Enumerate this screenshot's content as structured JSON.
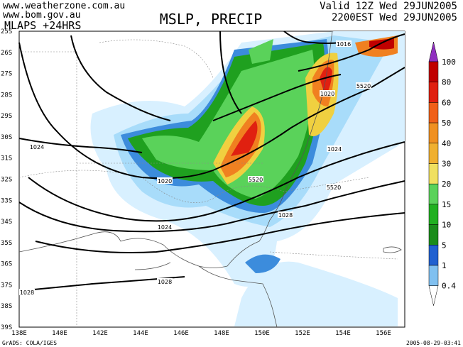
{
  "header": {
    "site_lines": [
      "www.weatherzone.com.au",
      "www.bom.gov.au"
    ],
    "model": "MLAPS +24HRS",
    "title": "MSLP, PRECIP",
    "valid": [
      "Valid 12Z Wed 29JUN2005",
      "2200EST Wed 29JUN2005"
    ]
  },
  "map": {
    "lat_labels": [
      "25S",
      "26S",
      "27S",
      "28S",
      "29S",
      "30S",
      "31S",
      "32S",
      "33S",
      "34S",
      "35S",
      "36S",
      "37S",
      "38S",
      "39S"
    ],
    "lon_labels": [
      "138E",
      "140E",
      "142E",
      "144E",
      "146E",
      "148E",
      "150E",
      "152E",
      "154E",
      "156E"
    ],
    "contour_labels": [
      "1016",
      "5520",
      "1020",
      "1024",
      "1024",
      "1020",
      "5520",
      "5520",
      "1028",
      "1024",
      "1028",
      "1028"
    ]
  },
  "colorbar": {
    "labels": [
      "100",
      "80",
      "60",
      "50",
      "40",
      "30",
      "20",
      "15",
      "10",
      "5",
      "1",
      "0.4"
    ]
  },
  "footer": {
    "credit": "GrADS: COLA/IGES",
    "timestamp": "2005-08-29-03:41"
  }
}
